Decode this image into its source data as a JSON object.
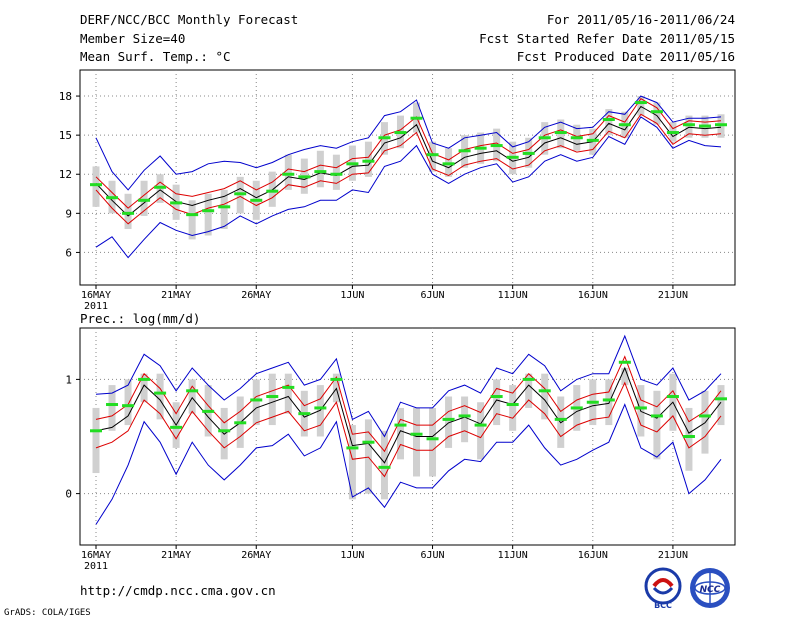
{
  "header": {
    "title": "DERF/NCC/BCC Monthly Forecast",
    "member_size": "Member Size=40",
    "variable1": "Mean Surf. Temp.: °C",
    "forecast_period": "For 2011/05/16-2011/06/24",
    "refer_date": "Fcst Started Refer Date 2011/05/15",
    "produced_date": "Fcst Produced Date 2011/05/16"
  },
  "footer": {
    "url": "http://cmdp.ncc.cma.gov.cn",
    "grads": "GrADS: COLA/IGES",
    "logo1_text": "BCC",
    "logo2_text": "NCC"
  },
  "colors": {
    "box": "#d0d0d0",
    "median": "#22dd22",
    "mean": "#000000",
    "spread": "#dd0000",
    "envelope": "#0000cc",
    "grid": "#888888"
  },
  "chart_data": [
    {
      "type": "box",
      "title": "Mean Surf. Temp.: °C",
      "x_tick_labels": [
        "16MAY",
        "21MAY",
        "26MAY",
        "1JUN",
        "6JUN",
        "11JUN",
        "16JUN",
        "21JUN"
      ],
      "x_tick_days": [
        0,
        5,
        10,
        16,
        21,
        26,
        31,
        36
      ],
      "year_label": "2011",
      "ylim": [
        3.5,
        20
      ],
      "y_ticks": [
        6,
        9,
        12,
        15,
        18
      ],
      "days": 40,
      "median": [
        11.2,
        10.2,
        9.0,
        10.0,
        11.0,
        9.8,
        8.9,
        9.2,
        9.5,
        10.5,
        10.0,
        10.7,
        12.0,
        11.8,
        12.2,
        12.0,
        12.8,
        13.0,
        14.8,
        15.2,
        16.3,
        13.5,
        12.8,
        13.8,
        14.0,
        14.2,
        13.3,
        13.6,
        14.8,
        15.2,
        14.8,
        14.6,
        16.2,
        15.8,
        17.5,
        16.8,
        15.2,
        15.8,
        15.7,
        15.8
      ],
      "box_low": [
        9.5,
        9.0,
        7.8,
        8.8,
        9.8,
        8.5,
        7.0,
        7.3,
        7.8,
        9.0,
        8.5,
        9.5,
        10.8,
        10.5,
        11.0,
        10.8,
        11.5,
        11.8,
        13.5,
        14.0,
        15.2,
        12.2,
        11.8,
        12.5,
        12.8,
        13.0,
        12.0,
        12.5,
        13.5,
        14.0,
        13.8,
        13.5,
        15.0,
        14.8,
        16.5,
        15.8,
        14.5,
        14.8,
        14.8,
        14.8
      ],
      "box_high": [
        12.6,
        11.5,
        10.5,
        11.5,
        12.0,
        11.2,
        10.0,
        10.5,
        10.8,
        11.8,
        11.5,
        12.2,
        13.5,
        13.2,
        13.8,
        13.5,
        14.2,
        14.5,
        16.0,
        16.5,
        17.5,
        14.5,
        14.0,
        15.0,
        15.2,
        15.5,
        14.5,
        14.8,
        16.0,
        16.2,
        15.8,
        15.5,
        17.0,
        16.8,
        18.0,
        17.5,
        16.0,
        16.5,
        16.5,
        16.6
      ],
      "mean": [
        11.3,
        10.0,
        8.8,
        9.8,
        10.8,
        9.9,
        9.6,
        10.0,
        10.3,
        10.9,
        10.2,
        10.8,
        11.8,
        11.6,
        12.1,
        11.9,
        12.6,
        12.7,
        14.4,
        14.8,
        15.8,
        13.0,
        12.5,
        13.3,
        13.6,
        13.8,
        13.0,
        13.3,
        14.4,
        14.8,
        14.3,
        14.5,
        15.9,
        15.4,
        17.2,
        16.5,
        14.9,
        15.6,
        15.5,
        15.6
      ],
      "mean_plus_sd": [
        11.8,
        10.6,
        9.4,
        10.4,
        11.4,
        10.5,
        10.3,
        10.6,
        10.9,
        11.5,
        10.8,
        11.4,
        12.4,
        12.2,
        12.7,
        12.5,
        13.2,
        13.3,
        15.0,
        15.4,
        16.4,
        13.6,
        13.1,
        13.9,
        14.2,
        14.4,
        13.6,
        13.9,
        15.0,
        15.4,
        14.9,
        15.1,
        16.5,
        16.0,
        17.8,
        17.1,
        15.5,
        16.1,
        16.0,
        16.1
      ],
      "mean_minus_sd": [
        10.8,
        9.4,
        8.2,
        9.2,
        10.2,
        9.3,
        8.9,
        9.4,
        9.7,
        10.3,
        9.6,
        10.2,
        11.2,
        11.0,
        11.5,
        11.3,
        12.0,
        12.1,
        13.8,
        14.2,
        15.2,
        12.4,
        11.9,
        12.7,
        13.0,
        13.2,
        12.4,
        12.7,
        13.8,
        14.2,
        13.7,
        13.9,
        15.3,
        14.8,
        16.6,
        15.9,
        14.3,
        15.1,
        15.0,
        15.1
      ],
      "envelope_high": [
        14.8,
        12.2,
        10.8,
        12.3,
        13.4,
        12.0,
        12.2,
        12.8,
        13.0,
        12.9,
        12.5,
        12.9,
        13.5,
        13.9,
        14.2,
        14.0,
        14.5,
        14.8,
        16.5,
        16.8,
        17.7,
        14.4,
        14.0,
        14.8,
        15.0,
        15.2,
        14.1,
        14.5,
        15.6,
        16.0,
        15.5,
        15.6,
        16.8,
        16.6,
        18.0,
        17.5,
        16.0,
        16.3,
        16.3,
        16.4
      ],
      "envelope_low": [
        6.4,
        7.2,
        5.6,
        7.0,
        8.3,
        7.7,
        7.3,
        7.6,
        8.0,
        8.8,
        8.2,
        8.8,
        9.3,
        9.5,
        10.0,
        10.0,
        10.8,
        10.6,
        12.6,
        13.0,
        14.2,
        12.0,
        11.3,
        12.0,
        12.5,
        12.8,
        11.4,
        11.8,
        13.0,
        13.5,
        13.0,
        13.3,
        14.9,
        14.3,
        16.4,
        15.6,
        14.0,
        14.6,
        14.2,
        14.1
      ]
    },
    {
      "type": "box",
      "title": "Prec.: log(mm/d)",
      "x_tick_labels": [
        "16MAY",
        "21MAY",
        "26MAY",
        "1JUN",
        "6JUN",
        "11JUN",
        "16JUN",
        "21JUN"
      ],
      "x_tick_days": [
        0,
        5,
        10,
        16,
        21,
        26,
        31,
        36
      ],
      "year_label": "2011",
      "ylim": [
        -0.45,
        1.45
      ],
      "y_ticks": [
        0,
        1
      ],
      "days": 40,
      "median": [
        0.55,
        0.78,
        0.77,
        1.0,
        0.88,
        0.58,
        0.9,
        0.72,
        0.55,
        0.62,
        0.82,
        0.85,
        0.93,
        0.7,
        0.75,
        1.0,
        0.4,
        0.45,
        0.23,
        0.6,
        0.52,
        0.48,
        0.65,
        0.68,
        0.6,
        0.85,
        0.78,
        1.0,
        0.9,
        0.65,
        0.75,
        0.8,
        0.82,
        1.15,
        0.75,
        0.68,
        0.85,
        0.5,
        0.68,
        0.83
      ],
      "box_low": [
        0.18,
        0.55,
        0.6,
        0.8,
        0.65,
        0.4,
        0.7,
        0.5,
        0.3,
        0.4,
        0.6,
        0.6,
        0.7,
        0.5,
        0.5,
        0.8,
        -0.05,
        0.0,
        -0.05,
        0.3,
        0.15,
        0.15,
        0.4,
        0.45,
        0.3,
        0.6,
        0.55,
        0.75,
        0.65,
        0.4,
        0.55,
        0.6,
        0.6,
        0.95,
        0.5,
        0.3,
        0.55,
        0.2,
        0.35,
        0.6
      ],
      "box_high": [
        0.75,
        0.95,
        1.0,
        1.05,
        1.05,
        0.8,
        1.0,
        0.95,
        0.75,
        0.85,
        1.0,
        1.05,
        1.05,
        0.9,
        0.95,
        1.05,
        0.6,
        0.65,
        0.55,
        0.75,
        0.75,
        0.75,
        0.85,
        0.85,
        0.8,
        1.0,
        0.95,
        1.05,
        1.05,
        0.85,
        0.95,
        1.0,
        1.0,
        1.1,
        0.95,
        0.9,
        1.05,
        0.75,
        0.9,
        0.95
      ],
      "mean": [
        0.55,
        0.58,
        0.68,
        0.95,
        0.82,
        0.6,
        0.84,
        0.67,
        0.52,
        0.62,
        0.75,
        0.8,
        0.85,
        0.67,
        0.73,
        0.92,
        0.42,
        0.44,
        0.27,
        0.55,
        0.5,
        0.5,
        0.62,
        0.67,
        0.61,
        0.82,
        0.78,
        0.95,
        0.82,
        0.62,
        0.72,
        0.77,
        0.79,
        1.1,
        0.72,
        0.66,
        0.8,
        0.53,
        0.62,
        0.8
      ],
      "mean_plus_sd": [
        0.65,
        0.68,
        0.78,
        1.05,
        0.92,
        0.7,
        0.94,
        0.77,
        0.62,
        0.72,
        0.85,
        0.9,
        0.95,
        0.77,
        0.83,
        1.02,
        0.52,
        0.54,
        0.37,
        0.65,
        0.6,
        0.6,
        0.72,
        0.77,
        0.71,
        0.92,
        0.88,
        1.05,
        0.92,
        0.72,
        0.82,
        0.87,
        0.89,
        1.2,
        0.82,
        0.76,
        0.9,
        0.63,
        0.72,
        0.9
      ],
      "mean_minus_sd": [
        0.4,
        0.45,
        0.55,
        0.82,
        0.7,
        0.48,
        0.72,
        0.55,
        0.4,
        0.5,
        0.62,
        0.67,
        0.72,
        0.55,
        0.6,
        0.8,
        0.3,
        0.32,
        0.15,
        0.43,
        0.38,
        0.38,
        0.5,
        0.55,
        0.49,
        0.7,
        0.66,
        0.82,
        0.7,
        0.5,
        0.6,
        0.65,
        0.67,
        0.97,
        0.6,
        0.54,
        0.68,
        0.4,
        0.5,
        0.68
      ],
      "envelope_high": [
        0.87,
        0.88,
        0.95,
        1.22,
        1.12,
        0.9,
        1.1,
        0.95,
        0.82,
        0.92,
        1.05,
        1.1,
        1.15,
        0.95,
        1.0,
        1.18,
        0.65,
        0.72,
        0.5,
        0.8,
        0.75,
        0.75,
        0.9,
        0.95,
        0.88,
        1.1,
        1.05,
        1.22,
        1.12,
        0.9,
        1.0,
        1.05,
        1.05,
        1.38,
        1.0,
        0.95,
        1.1,
        0.82,
        0.9,
        1.05
      ],
      "envelope_low": [
        -0.27,
        -0.05,
        0.25,
        0.63,
        0.45,
        0.17,
        0.45,
        0.25,
        0.12,
        0.25,
        0.4,
        0.42,
        0.52,
        0.33,
        0.4,
        0.63,
        -0.03,
        0.05,
        -0.12,
        0.1,
        0.05,
        0.05,
        0.2,
        0.3,
        0.28,
        0.45,
        0.45,
        0.6,
        0.4,
        0.25,
        0.3,
        0.38,
        0.45,
        0.78,
        0.4,
        0.32,
        0.45,
        0.0,
        0.12,
        0.3
      ]
    }
  ]
}
